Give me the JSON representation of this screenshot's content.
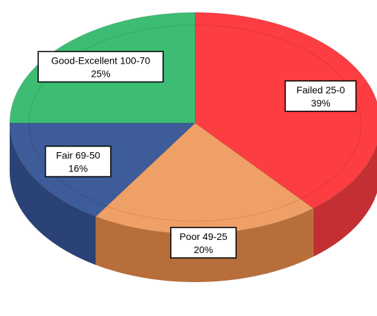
{
  "chart_data": {
    "type": "pie",
    "style": "3d",
    "slices": [
      {
        "label": "Failed 25-0",
        "value": 39,
        "value_label": "39%",
        "color": "#FC3D41",
        "side_color": "#C42F33"
      },
      {
        "label": "Poor 49-25",
        "value": 20,
        "value_label": "20%",
        "color": "#EFA066",
        "side_color": "#B76E3B"
      },
      {
        "label": "Fair 69-50",
        "value": 16,
        "value_label": "16%",
        "color": "#3D5C99",
        "side_color": "#2A4275"
      },
      {
        "label": "Good-Excellent 100-70",
        "value": 25,
        "value_label": "25%",
        "color": "#3DBD74",
        "side_color": "#2E8E58"
      }
    ]
  }
}
